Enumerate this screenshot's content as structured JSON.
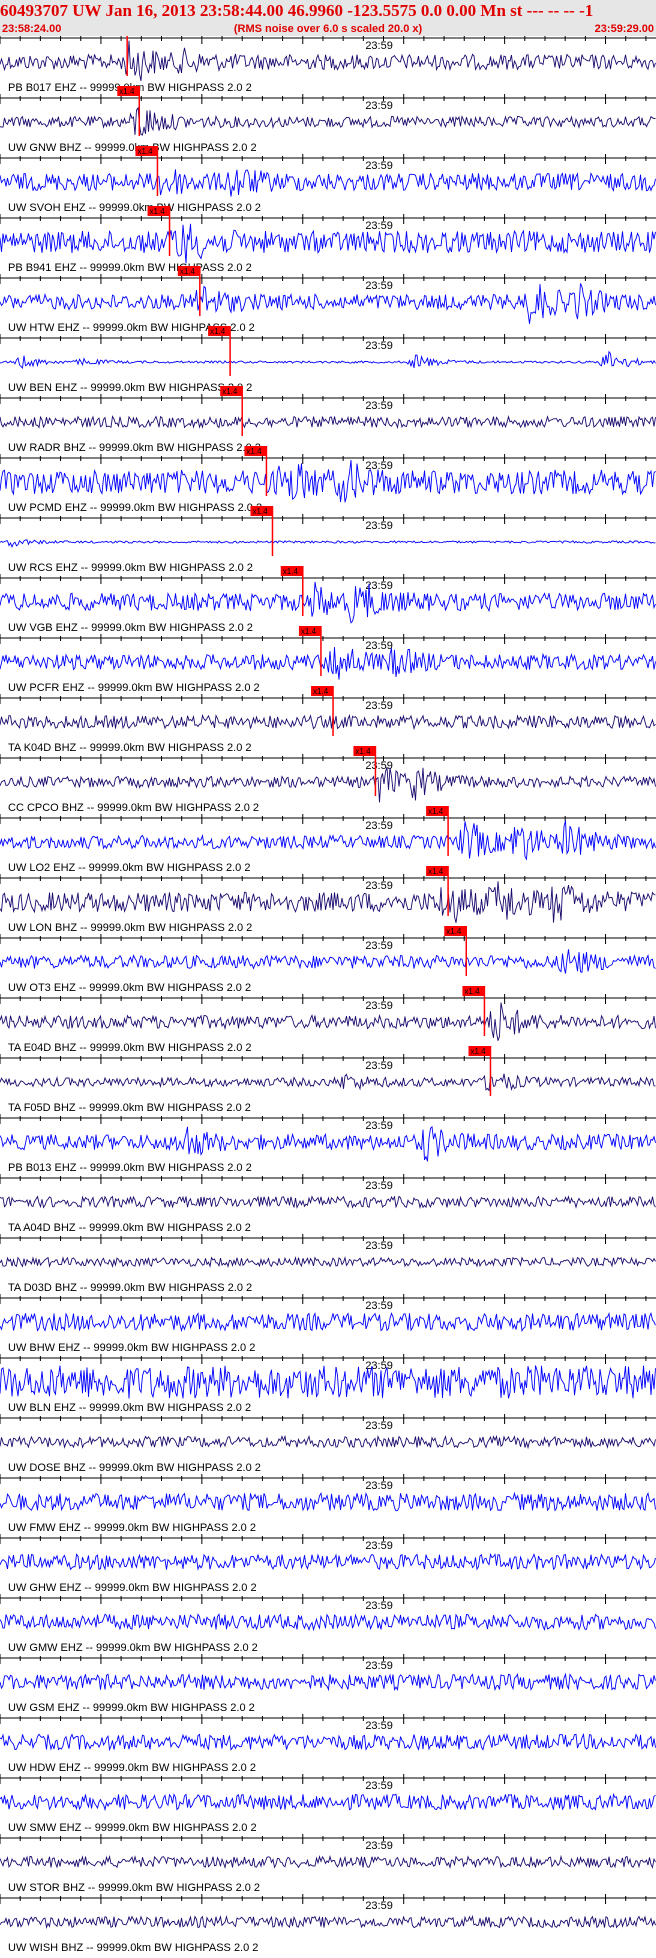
{
  "header": {
    "title": "60493707 UW Jan 16, 2013 23:58:44.00   46.9960 -123.5575  0.0 0.00 Mn st --- -- --   -1",
    "start_time": "23:58:24.00",
    "subtitle": "(RMS noise over 6.0 s scaled 20.0 x)",
    "end_time": "23:59:29.00"
  },
  "colors": {
    "trace_blue": "#0000ff",
    "trace_navy": "#1a0a6e",
    "pick_red": "#ff0000",
    "header_bg": "#e6e6e6"
  },
  "chart_data": {
    "type": "line",
    "title": "60493707 UW Jan 16, 2013 23:58:44.00   46.9960 -123.5575  0.0 0.00 Mn st --- -- --   -1",
    "xlim": [
      "23:58:24.00",
      "23:59:29.00"
    ],
    "mid_tick_label": "23:59",
    "pick_label": "x1.4",
    "traces": [
      {
        "name": "PB B017 EHZ -- 99999.0km BW  HIGHPASS  2.0  2",
        "color": "navy",
        "pick": "23:58:36.6",
        "amp": 0.35,
        "bursts": [
          [
            "23:58:36.8",
            1.0
          ],
          [
            "23:58:42.0",
            0.3
          ]
        ]
      },
      {
        "name": "UW GNW BHZ -- 99999.0km BW  HIGHPASS  2.0  2",
        "color": "navy",
        "pick": "23:58:37.8",
        "amp": 0.25,
        "bursts": [
          [
            "23:58:37.5",
            0.9
          ]
        ]
      },
      {
        "name": "UW SVOH EHZ -- 99999.0km BW  HIGHPASS  2.0  2",
        "color": "blue",
        "pick": "23:58:39.6",
        "amp": 0.4,
        "bursts": [
          [
            "23:58:40.0",
            0.6
          ],
          [
            "23:58:47.0",
            0.6
          ]
        ]
      },
      {
        "name": "PB B941 EHZ -- 99999.0km BW  HIGHPASS  2.0  2",
        "color": "blue",
        "pick": "23:58:40.8",
        "amp": 0.5,
        "bursts": [
          [
            "23:58:41.5",
            1.0
          ]
        ]
      },
      {
        "name": "UW HTW EHZ -- 99999.0km BW  HIGHPASS  2.0  2",
        "color": "blue",
        "pick": "23:58:43.8",
        "amp": 0.35,
        "bursts": [
          [
            "23:58:43.5",
            0.8
          ],
          [
            "23:59:16.5",
            1.0
          ],
          [
            "23:59:21.0",
            0.6
          ]
        ]
      },
      {
        "name": "UW BEN EHZ -- 99999.0km BW  HIGHPASS  2.0  2",
        "color": "blue",
        "pick": "23:58:46.8",
        "amp": 0.05,
        "bursts": [
          [
            "23:58:26.0",
            0.3
          ],
          [
            "23:58:32.0",
            0.15
          ],
          [
            "23:59:05.0",
            0.4
          ],
          [
            "23:59:24.0",
            0.6
          ]
        ]
      },
      {
        "name": "UW RADR BHZ -- 99999.0km BW  HIGHPASS  2.0  2",
        "color": "navy",
        "pick": "23:58:48.0",
        "amp": 0.25,
        "bursts": []
      },
      {
        "name": "UW PCMD EHZ -- 99999.0km BW  HIGHPASS  2.0  2",
        "color": "blue",
        "pick": "23:58:50.4",
        "amp": 0.55,
        "bursts": [
          [
            "23:58:52.0",
            1.0
          ],
          [
            "23:58:58.0",
            0.8
          ]
        ]
      },
      {
        "name": "UW RCS EHZ -- 99999.0km BW  HIGHPASS  2.0  2",
        "color": "blue",
        "pick": "23:58:51.0",
        "amp": 0.05,
        "bursts": [
          [
            "23:58:25.0",
            0.2
          ]
        ]
      },
      {
        "name": "UW VGB EHZ -- 99999.0km BW  HIGHPASS  2.0  2",
        "color": "blue",
        "pick": "23:58:54.0",
        "amp": 0.4,
        "bursts": [
          [
            "23:58:59.0",
            1.0
          ],
          [
            "23:58:55.0",
            0.6
          ]
        ]
      },
      {
        "name": "UW PCFR EHZ -- 99999.0km BW  HIGHPASS  2.0  2",
        "color": "blue",
        "pick": "23:58:55.8",
        "amp": 0.35,
        "bursts": [
          [
            "23:58:57.0",
            0.9
          ],
          [
            "23:59:03.0",
            0.5
          ]
        ]
      },
      {
        "name": "TA K04D BHZ -- 99999.0km BW  HIGHPASS  2.0  2",
        "color": "navy",
        "pick": "23:58:57.0",
        "amp": 0.3,
        "bursts": []
      },
      {
        "name": "CC CPCO BHZ -- 99999.0km BW  HIGHPASS  2.0  2",
        "color": "navy",
        "pick": "23:59:01.2",
        "amp": 0.25,
        "bursts": [
          [
            "23:59:01.6",
            0.8
          ],
          [
            "23:59:05.0",
            0.6
          ]
        ]
      },
      {
        "name": "UW LO2 EHZ -- 99999.0km BW  HIGHPASS  2.0  2",
        "color": "blue",
        "pick": "23:59:08.4",
        "amp": 0.3,
        "bursts": [
          [
            "23:59:10.0",
            1.0
          ],
          [
            "23:59:15.0",
            1.0
          ],
          [
            "23:59:20.0",
            0.8
          ]
        ]
      },
      {
        "name": "UW LON BHZ -- 99999.0km BW  HIGHPASS  2.0  2",
        "color": "navy",
        "pick": "23:59:08.4",
        "amp": 0.45,
        "bursts": [
          [
            "23:59:08.0",
            1.0
          ],
          [
            "23:59:13.0",
            1.0
          ],
          [
            "23:59:19.0",
            0.9
          ]
        ]
      },
      {
        "name": "UW OT3 EHZ -- 99999.0km BW  HIGHPASS  2.0  2",
        "color": "blue",
        "pick": "23:59:10.2",
        "amp": 0.3,
        "bursts": [
          [
            "23:59:20.0",
            0.6
          ]
        ]
      },
      {
        "name": "TA E04D BHZ -- 99999.0km BW  HIGHPASS  2.0  2",
        "color": "navy",
        "pick": "23:59:12.0",
        "amp": 0.3,
        "bursts": [
          [
            "23:59:13.0",
            1.0
          ]
        ]
      },
      {
        "name": "TA F05D BHZ -- 99999.0km BW  HIGHPASS  2.0  2",
        "color": "navy",
        "pick": "23:59:12.6",
        "amp": 0.2,
        "bursts": [
          [
            "23:59:12.5",
            0.5
          ],
          [
            "23:58:58.0",
            0.3
          ]
        ]
      },
      {
        "name": "PB B013 EHZ -- 99999.0km BW  HIGHPASS  2.0  2",
        "color": "blue",
        "amp": 0.35,
        "bursts": [
          [
            "23:58:42.0",
            0.7
          ],
          [
            "23:59:06.0",
            0.7
          ]
        ]
      },
      {
        "name": "TA A04D BHZ -- 99999.0km BW  HIGHPASS  2.0  2",
        "color": "navy",
        "amp": 0.25,
        "bursts": []
      },
      {
        "name": "TA D03D BHZ -- 99999.0km BW  HIGHPASS  2.0  2",
        "color": "navy",
        "amp": 0.2,
        "bursts": []
      },
      {
        "name": "UW BHW EHZ -- 99999.0km BW  HIGHPASS  2.0  2",
        "color": "blue",
        "amp": 0.4,
        "bursts": []
      },
      {
        "name": "UW BLN EHZ -- 99999.0km BW  HIGHPASS  2.0  2",
        "color": "blue",
        "amp": 0.75,
        "bursts": []
      },
      {
        "name": "UW DOSE BHZ -- 99999.0km BW  HIGHPASS  2.0  2",
        "color": "navy",
        "amp": 0.25,
        "bursts": []
      },
      {
        "name": "UW FMW EHZ -- 99999.0km BW  HIGHPASS  2.0  2",
        "color": "blue",
        "amp": 0.4,
        "bursts": []
      },
      {
        "name": "UW GHW EHZ -- 99999.0km BW  HIGHPASS  2.0  2",
        "color": "blue",
        "amp": 0.35,
        "bursts": []
      },
      {
        "name": "UW GMW EHZ -- 99999.0km BW  HIGHPASS  2.0  2",
        "color": "blue",
        "amp": 0.35,
        "bursts": []
      },
      {
        "name": "UW GSM EHZ -- 99999.0km BW  HIGHPASS  2.0  2",
        "color": "blue",
        "amp": 0.35,
        "bursts": []
      },
      {
        "name": "UW HDW EHZ -- 99999.0km BW  HIGHPASS  2.0  2",
        "color": "blue",
        "amp": 0.35,
        "bursts": []
      },
      {
        "name": "UW SMW EHZ -- 99999.0km BW  HIGHPASS  2.0  2",
        "color": "blue",
        "amp": 0.35,
        "bursts": []
      },
      {
        "name": "UW STOR BHZ -- 99999.0km BW  HIGHPASS  2.0  2",
        "color": "navy",
        "amp": 0.25,
        "bursts": []
      },
      {
        "name": "UW WISH BHZ -- 99999.0km BW  HIGHPASS  2.0  2",
        "color": "navy",
        "amp": 0.25,
        "bursts": []
      }
    ]
  }
}
